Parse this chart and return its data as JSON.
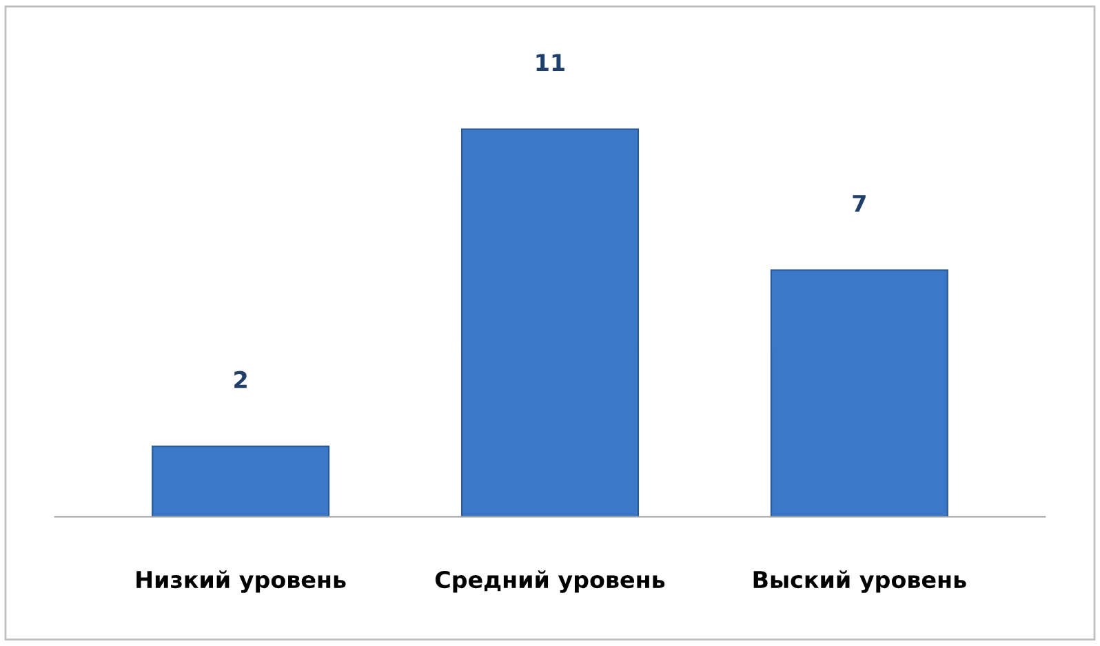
{
  "chart_data": {
    "type": "bar",
    "categories": [
      "Низкий уровень",
      "Средний уровень",
      "Выский уровень"
    ],
    "values": [
      2,
      11,
      7
    ],
    "color": "#3b78c8",
    "data_labels": true,
    "grid": false,
    "legend": false
  }
}
